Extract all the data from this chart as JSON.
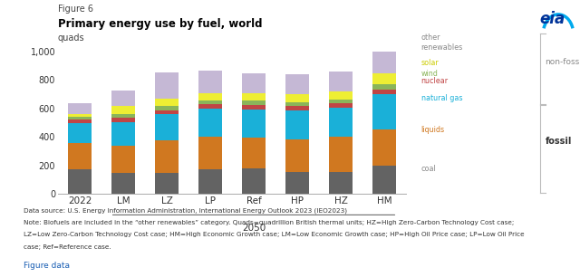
{
  "categories": [
    "2022",
    "LM",
    "LZ",
    "LP",
    "Ref",
    "HP",
    "HZ",
    "HM"
  ],
  "title": "Primary energy use by fuel, world",
  "subtitle": "quads",
  "figure_label": "Figure 6",
  "ylim": [
    0,
    1050
  ],
  "yticks": [
    0,
    200,
    400,
    600,
    800,
    1000
  ],
  "ytick_labels": [
    "0",
    "200",
    "400",
    "600",
    "800",
    "1,000"
  ],
  "series": {
    "coal": [
      170,
      150,
      150,
      175,
      180,
      155,
      155,
      200
    ],
    "liquids": [
      185,
      185,
      228,
      225,
      215,
      225,
      245,
      250
    ],
    "natural_gas": [
      145,
      170,
      180,
      200,
      200,
      205,
      205,
      250
    ],
    "nuclear": [
      25,
      30,
      30,
      30,
      30,
      30,
      30,
      35
    ],
    "wind": [
      15,
      28,
      28,
      28,
      28,
      28,
      28,
      32
    ],
    "solar": [
      20,
      52,
      52,
      48,
      52,
      57,
      57,
      82
    ],
    "other_renewables": [
      75,
      110,
      185,
      162,
      142,
      142,
      140,
      148
    ]
  },
  "colors": {
    "coal": "#636363",
    "liquids": "#d07820",
    "natural_gas": "#1ab0d8",
    "nuclear": "#c04545",
    "wind": "#8ab55a",
    "solar": "#eeee33",
    "other_renewables": "#c5b8d5"
  },
  "label_colors": {
    "coal": "#888888",
    "liquids": "#d07820",
    "natural_gas": "#1ab0d8",
    "nuclear": "#c04545",
    "wind": "#8ab55a",
    "solar": "#cccc00",
    "other_renewables": "#888888"
  },
  "background_color": "#ffffff",
  "bar_width": 0.55,
  "note_line1": "Data source: U.S. Energy Information Administration, International Energy Outlook 2023 (IEO2023)",
  "note_line2": "Note: Biofuels are included in the “other renewables” category. Quads=quadrillion British thermal units; HZ=High Zero-Carbon Technology Cost case;",
  "note_line3": "LZ=Low Zero-Carbon Technology Cost case; HM=High Economic Growth case; LM=Low Economic Growth case; HP=High Oil Price case; LP=Low Oil Price",
  "note_line4": "case; Ref=Reference case."
}
